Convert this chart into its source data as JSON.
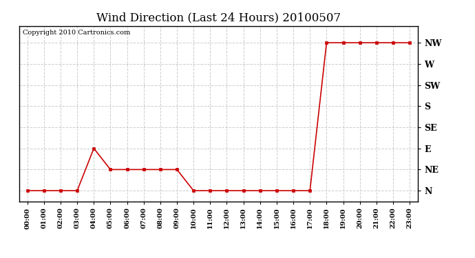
{
  "title": "Wind Direction (Last 24 Hours) 20100507",
  "copyright": "Copyright 2010 Cartronics.com",
  "hours": [
    0,
    1,
    2,
    3,
    4,
    5,
    6,
    7,
    8,
    9,
    10,
    11,
    12,
    13,
    14,
    15,
    16,
    17,
    18,
    19,
    20,
    21,
    22,
    23
  ],
  "x_labels": [
    "00:00",
    "01:00",
    "02:00",
    "03:00",
    "04:00",
    "05:00",
    "06:00",
    "07:00",
    "08:00",
    "09:00",
    "10:00",
    "11:00",
    "12:00",
    "13:00",
    "14:00",
    "15:00",
    "16:00",
    "17:00",
    "18:00",
    "19:00",
    "20:00",
    "21:00",
    "22:00",
    "23:00"
  ],
  "wind_values": [
    0,
    0,
    0,
    0,
    2,
    1,
    1,
    1,
    1,
    1,
    0,
    0,
    0,
    0,
    0,
    0,
    0,
    0,
    7,
    7,
    7,
    7,
    7,
    7
  ],
  "y_ticks": [
    0,
    1,
    2,
    3,
    4,
    5,
    6,
    7
  ],
  "y_labels": [
    "N",
    "NE",
    "E",
    "SE",
    "S",
    "SW",
    "W",
    "NW"
  ],
  "line_color": "#cc0000",
  "marker": "s",
  "marker_size": 3,
  "grid_color": "#cccccc",
  "grid_style": "--",
  "bg_color": "#ffffff",
  "title_fontsize": 12,
  "label_fontsize": 9,
  "copyright_fontsize": 7,
  "tick_fontsize": 7
}
